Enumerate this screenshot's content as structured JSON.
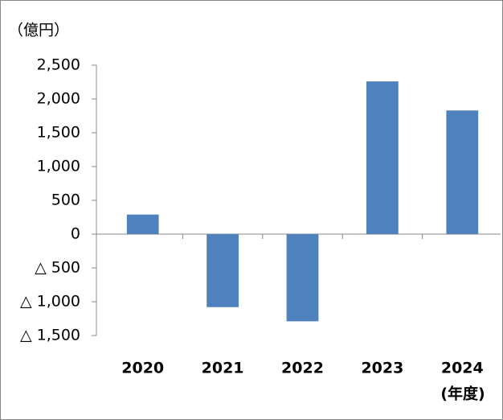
{
  "chart_data": {
    "type": "bar",
    "y_axis_label": "（億円）",
    "x_axis_label": "(年度)",
    "categories": [
      "2020",
      "2021",
      "2022",
      "2023",
      "2024"
    ],
    "values": [
      290,
      -1080,
      -1290,
      2260,
      1830
    ],
    "color": "#4f81bd",
    "ylim": [
      -1500,
      2500
    ],
    "yticks": [
      {
        "value": -1500,
        "label": "△ 1,500"
      },
      {
        "value": -1000,
        "label": "△ 1,000"
      },
      {
        "value": -500,
        "label": "△ 500"
      },
      0,
      500,
      {
        "value": 1000,
        "label": "1,000"
      },
      {
        "value": 1500,
        "label": "1,500"
      },
      {
        "value": 2000,
        "label": "2,000"
      },
      {
        "value": 2500,
        "label": "2,500"
      }
    ],
    "grid": false
  }
}
